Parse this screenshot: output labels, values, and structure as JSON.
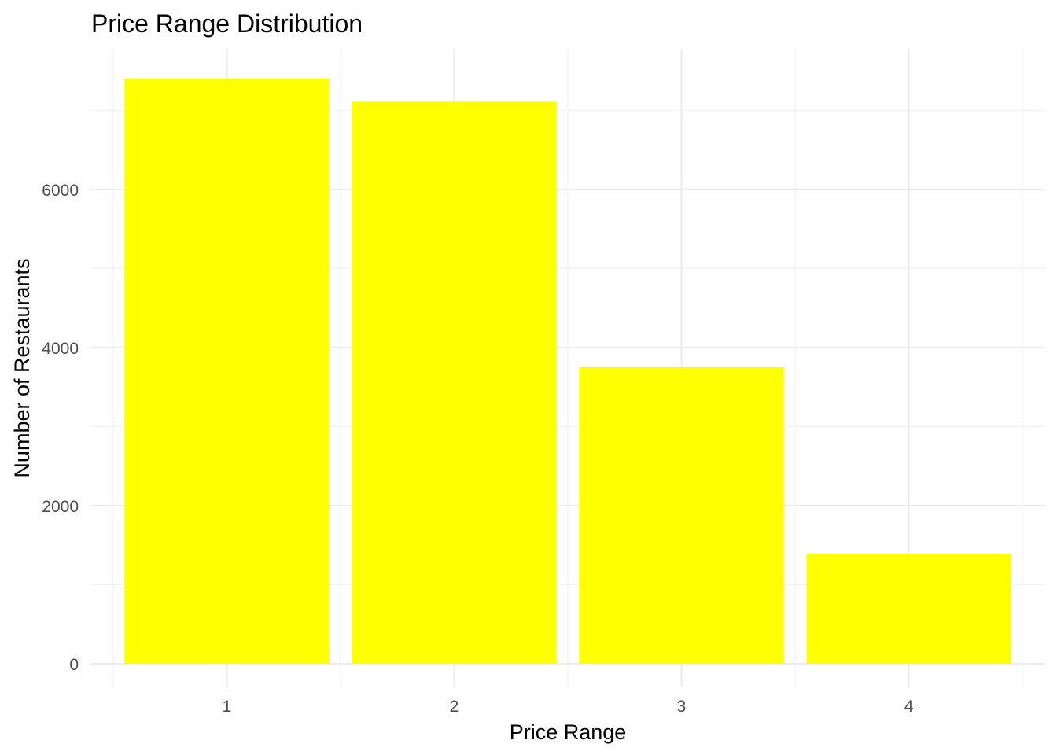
{
  "chart_data": {
    "type": "bar",
    "title": "Price Range Distribution",
    "xlabel": "Price Range",
    "ylabel": "Number of Restaurants",
    "categories": [
      "1",
      "2",
      "3",
      "4"
    ],
    "values": [
      7400,
      7110,
      3750,
      1390
    ],
    "yticks": [
      0,
      2000,
      4000,
      6000
    ],
    "ylim": [
      -300,
      7780
    ],
    "bar_color": "#FFFF00",
    "grid": true,
    "legend": "none"
  }
}
